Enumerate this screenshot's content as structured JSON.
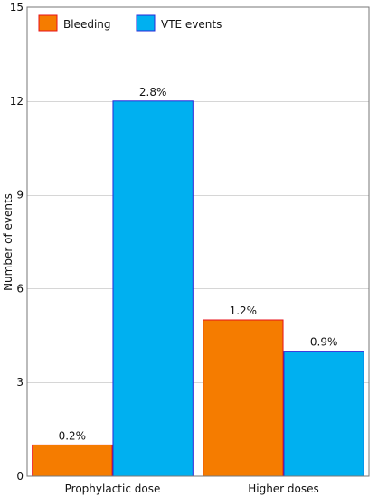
{
  "chart_data": {
    "type": "bar",
    "title": "",
    "xlabel": "",
    "ylabel": "Number of events",
    "ylim": [
      0,
      15
    ],
    "yticks": [
      0,
      3,
      6,
      9,
      12,
      15
    ],
    "grid": true,
    "legend_position": "top-left",
    "categories": [
      "Prophylactic dose",
      "Higher doses"
    ],
    "series": [
      {
        "name": "Bleeding",
        "values": [
          1,
          5
        ],
        "labels": [
          "0.2%",
          "1.2%"
        ],
        "fill": "#f57c00",
        "stroke": "#e8121a"
      },
      {
        "name": "VTE events",
        "values": [
          12,
          4
        ],
        "labels": [
          "2.8%",
          "0.9%"
        ],
        "fill": "#00b0f0",
        "stroke": "#2828d8"
      }
    ]
  }
}
